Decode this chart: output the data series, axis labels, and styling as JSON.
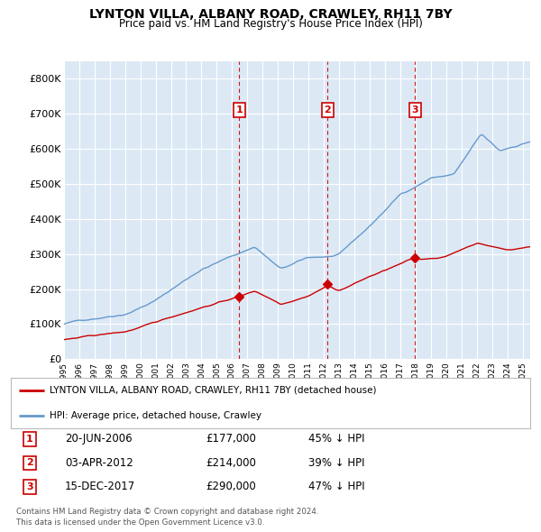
{
  "title": "LYNTON VILLA, ALBANY ROAD, CRAWLEY, RH11 7BY",
  "subtitle": "Price paid vs. HM Land Registry's House Price Index (HPI)",
  "legend_label_red": "LYNTON VILLA, ALBANY ROAD, CRAWLEY, RH11 7BY (detached house)",
  "legend_label_blue": "HPI: Average price, detached house, Crawley",
  "footer_line1": "Contains HM Land Registry data © Crown copyright and database right 2024.",
  "footer_line2": "This data is licensed under the Open Government Licence v3.0.",
  "transactions": [
    {
      "num": 1,
      "date": "20-JUN-2006",
      "price": "£177,000",
      "pct": "45%",
      "dir": "↓",
      "year": 2006.47
    },
    {
      "num": 2,
      "date": "03-APR-2012",
      "price": "£214,000",
      "pct": "39%",
      "dir": "↓",
      "year": 2012.25
    },
    {
      "num": 3,
      "date": "15-DEC-2017",
      "price": "£290,000",
      "pct": "47%",
      "dir": "↓",
      "year": 2017.96
    }
  ],
  "transaction_marker_values": [
    177000,
    214000,
    290000
  ],
  "ylim": [
    0,
    850000
  ],
  "yticks": [
    0,
    100000,
    200000,
    300000,
    400000,
    500000,
    600000,
    700000,
    800000
  ],
  "background_color": "#dce9f5",
  "red_color": "#cc0000",
  "blue_color": "#6699cc",
  "grid_color": "#ffffff",
  "vline_color": "#cc0000",
  "xlim_start": 1995,
  "xlim_end": 2025.5
}
